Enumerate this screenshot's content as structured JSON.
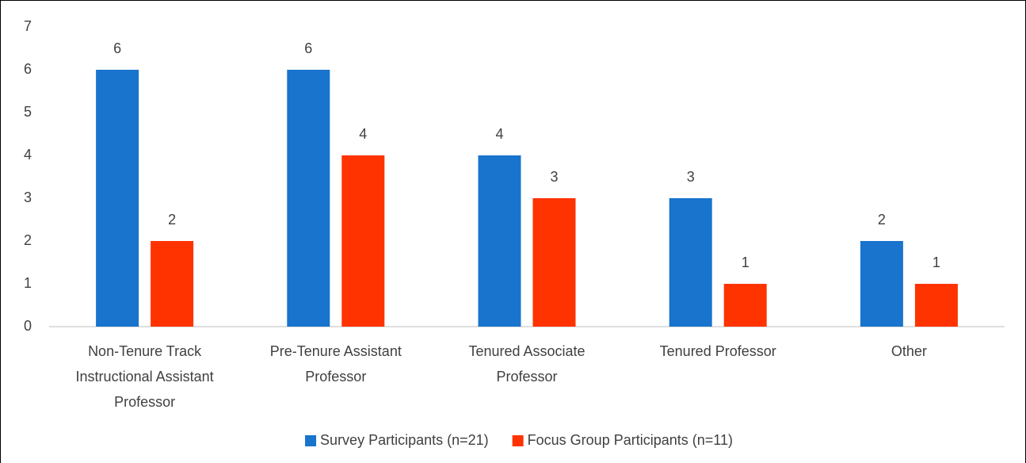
{
  "chart_data": {
    "type": "bar",
    "categories": [
      "Non-Tenure Track Instructional Assistant Professor",
      "Pre-Tenure Assistant Professor",
      "Tenured Associate Professor",
      "Tenured Professor",
      "Other"
    ],
    "series": [
      {
        "name": "Survey Participants (n=21)",
        "color": "#1874cd",
        "values": [
          6,
          6,
          4,
          3,
          2
        ]
      },
      {
        "name": "Focus Group Participants (n=11)",
        "color": "#ff3300",
        "values": [
          2,
          4,
          3,
          1,
          1
        ]
      }
    ],
    "ylim": [
      0,
      7
    ],
    "yticks": [
      0,
      1,
      2,
      3,
      4,
      5,
      6,
      7
    ],
    "grid": false,
    "legend": "bottom"
  }
}
